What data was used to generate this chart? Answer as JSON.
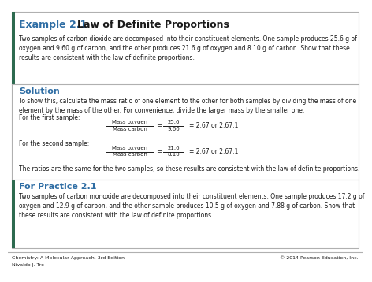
{
  "background_color": "#ffffff",
  "border_color": "#b0b0b0",
  "title_blue": "#2e6da4",
  "green_bar_color": "#2d6a4f",
  "example_label": "Example 2.1",
  "example_title": "Law of Definite Proportions",
  "example_body": "Two samples of carbon dioxide are decomposed into their constituent elements. One sample produces 25.6 g of\noxygen and 9.60 g of carbon, and the other produces 21.6 g of oxygen and 8.10 g of carbon. Show that these\nresults are consistent with the law of definite proportions.",
  "solution_label": "Solution",
  "solution_body": "To show this, calculate the mass ratio of one element to the other for both samples by dividing the mass of one\nelement by the mass of the other. For convenience, divide the larger mass by the smaller one.",
  "first_sample_label": "For the first sample:",
  "second_sample_label": "For the second sample:",
  "ratio_conclusion": "The ratios are the same for the two samples, so these results are consistent with the law of definite proportions.",
  "practice_label": "For Practice 2.1",
  "practice_body": "Two samples of carbon monoxide are decomposed into their constituent elements. One sample produces 17.2 g of\noxygen and 12.9 g of carbon, and the other sample produces 10.5 g of oxygen and 7.88 g of carbon. Show that\nthese results are consistent with the law of definite proportions.",
  "footer_left1": "Chemistry: A Molecular Approach, 3rd Edition",
  "footer_left2": "Nivaldo J. Tro",
  "footer_right": "© 2014 Pearson Education, Inc.",
  "frac1_num": "Mass oxygen",
  "frac1_den": "Mass carbon",
  "frac1_val_num": "25.6",
  "frac1_val_den": "9.60",
  "frac1_result": "= 2.67 or 2.67:1",
  "frac2_num": "Mass oxygen",
  "frac2_den": "Mass carbon",
  "frac2_val_num": "21.6",
  "frac2_val_den": "8.10",
  "frac2_result": "= 2.67 or 2.67:1"
}
